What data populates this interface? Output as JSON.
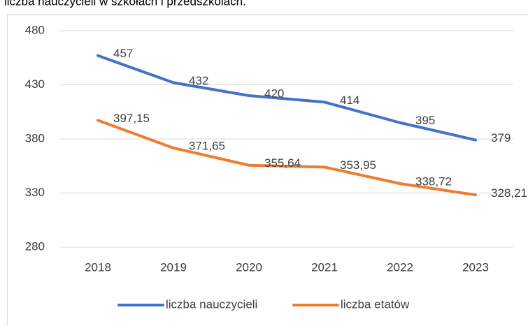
{
  "chart_data": {
    "type": "line",
    "title": "liczba nauczycieli w szkołach i przedszkolach.",
    "categories": [
      "2018",
      "2019",
      "2020",
      "2021",
      "2022",
      "2023"
    ],
    "series": [
      {
        "name": "liczba nauczycieli",
        "color": "#4472c4",
        "values": [
          457,
          432,
          420,
          414,
          395,
          379
        ]
      },
      {
        "name": "liczba etatów",
        "color": "#ed7d31",
        "values": [
          397.15,
          371.65,
          355.64,
          353.95,
          338.72,
          328.21
        ],
        "value_labels": [
          "397,15",
          "371,65",
          "355,64",
          "353,95",
          "338,72",
          "328,21"
        ]
      }
    ],
    "ylim": [
      280,
      480
    ],
    "yticks": [
      280,
      330,
      380,
      430,
      480
    ],
    "grid": true,
    "legend": "bottom"
  }
}
